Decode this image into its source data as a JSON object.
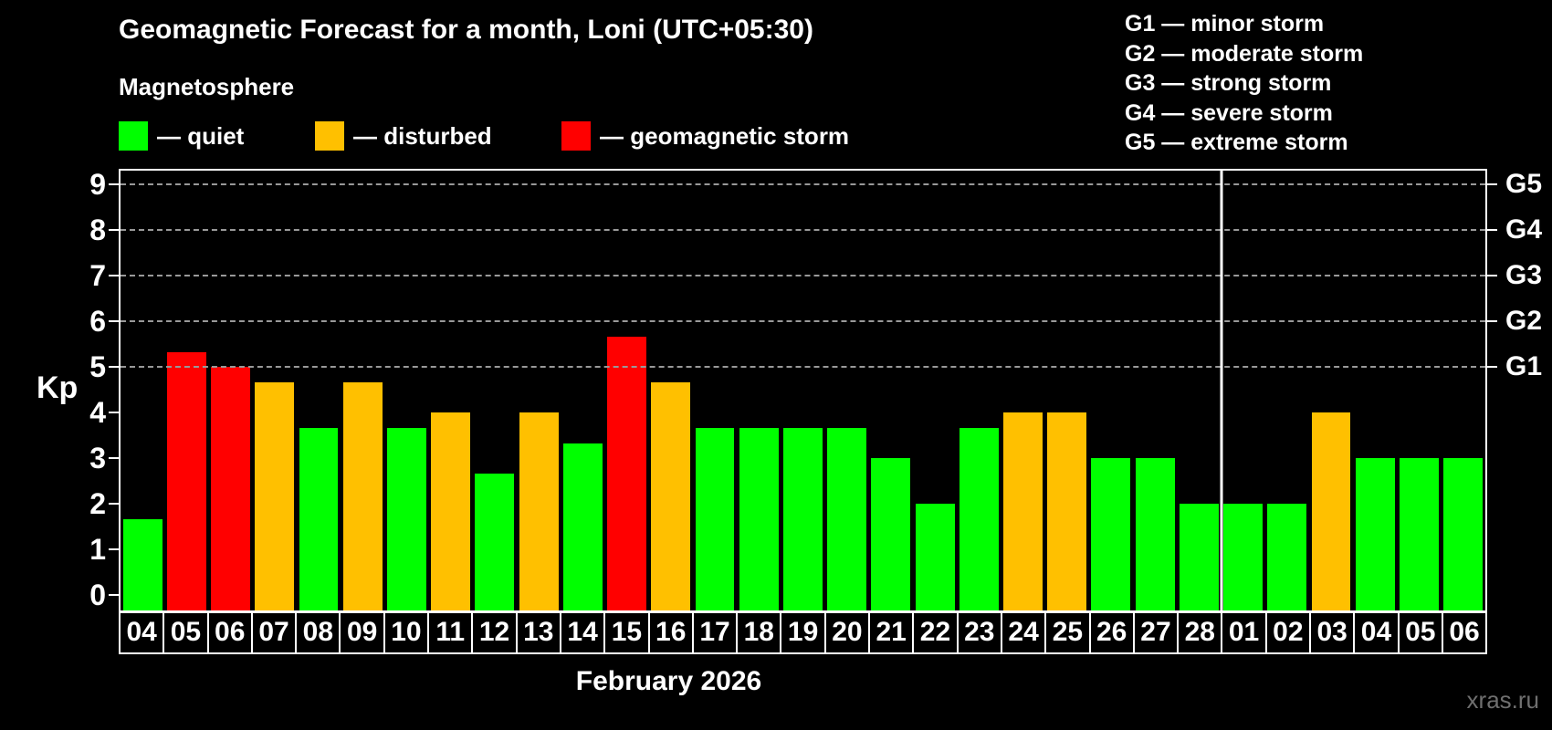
{
  "header": {
    "title": "Geomagnetic Forecast for a month, Loni (UTC+05:30)",
    "subtitle": "Magnetosphere"
  },
  "legend": {
    "items": [
      {
        "label": "— quiet",
        "status": "quiet",
        "color": "#00ff00"
      },
      {
        "label": "— disturbed",
        "status": "disturbed",
        "color": "#ffc000"
      },
      {
        "label": "— geomagnetic storm",
        "status": "storm",
        "color": "#ff0000"
      }
    ]
  },
  "g_scale_legend": {
    "items": [
      "G1 — minor storm",
      "G2 — moderate storm",
      "G3 — strong storm",
      "G4 — severe storm",
      "G5 — extreme storm"
    ]
  },
  "chart_data": {
    "type": "bar",
    "title": "Geomagnetic Forecast for a month, Loni (UTC+05:30)",
    "ylabel": "Kp",
    "xlabel": "February 2026",
    "ylim": [
      0,
      9.3
    ],
    "yticks": [
      0,
      1,
      2,
      3,
      4,
      5,
      6,
      7,
      8,
      9
    ],
    "grid": "horizontal dashed lines at Kp 5..9 (G1..G5)",
    "legend_position": "top",
    "right_axis_labels": [
      {
        "kp": 5,
        "label": "G1"
      },
      {
        "kp": 6,
        "label": "G2"
      },
      {
        "kp": 7,
        "label": "G3"
      },
      {
        "kp": 8,
        "label": "G4"
      },
      {
        "kp": 9,
        "label": "G5"
      }
    ],
    "categories": [
      "04",
      "05",
      "06",
      "07",
      "08",
      "09",
      "10",
      "11",
      "12",
      "13",
      "14",
      "15",
      "16",
      "17",
      "18",
      "19",
      "20",
      "21",
      "22",
      "23",
      "24",
      "25",
      "26",
      "27",
      "28",
      "01",
      "02",
      "03",
      "04",
      "05",
      "06"
    ],
    "values": [
      1.67,
      5.33,
      5.0,
      4.67,
      3.67,
      4.67,
      3.67,
      4.0,
      2.67,
      4.0,
      3.33,
      5.67,
      4.67,
      3.67,
      3.67,
      3.67,
      3.67,
      3.0,
      2.0,
      3.67,
      4.0,
      4.0,
      3.0,
      3.0,
      2.0,
      2.0,
      2.0,
      4.0,
      3.0,
      3.0,
      3.0
    ],
    "statuses": [
      "quiet",
      "storm",
      "storm",
      "disturbed",
      "quiet",
      "disturbed",
      "quiet",
      "disturbed",
      "quiet",
      "disturbed",
      "quiet",
      "storm",
      "disturbed",
      "quiet",
      "quiet",
      "quiet",
      "quiet",
      "quiet",
      "quiet",
      "quiet",
      "disturbed",
      "disturbed",
      "quiet",
      "quiet",
      "quiet",
      "quiet",
      "quiet",
      "disturbed",
      "quiet",
      "quiet",
      "quiet"
    ],
    "month_separator_after_index": 24,
    "colors": {
      "quiet": "#00ff00",
      "disturbed": "#ffc000",
      "storm": "#ff0000"
    },
    "axis_color": "#ffffff",
    "grid_color": "#999999"
  },
  "footer": {
    "watermark": "xras.ru"
  }
}
